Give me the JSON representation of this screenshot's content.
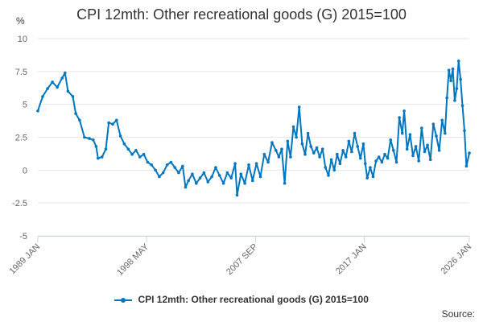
{
  "chart_data": {
    "type": "line",
    "title": "CPI 12mth: Other recreational goods (G) 2015=100",
    "ylabel": "%",
    "xlabel": "",
    "ylim": [
      -5,
      10
    ],
    "yticks": [
      "10",
      "7.5",
      "5",
      "2.5",
      "0",
      "-2.5",
      "-5"
    ],
    "xlim": [
      "1989-01",
      "2026-01"
    ],
    "xticks": [
      {
        "label": "1989 JAN",
        "date": "1989-01"
      },
      {
        "label": "1998 MAY",
        "date": "1998-05"
      },
      {
        "label": "2007 SEP",
        "date": "2007-09"
      },
      {
        "label": "2017 JAN",
        "date": "2017-01"
      },
      {
        "label": "2026 JAN",
        "date": "2026-01"
      }
    ],
    "grid": true,
    "legend_position": "bottom",
    "series": [
      {
        "name": "CPI 12mth: Other recreational goods (G) 2015=100",
        "color": "#0076bf",
        "points": [
          [
            "1989-01",
            4.5
          ],
          [
            "1989-06",
            5.6
          ],
          [
            "1989-11",
            6.2
          ],
          [
            "1990-04",
            6.7
          ],
          [
            "1990-09",
            6.3
          ],
          [
            "1991-02",
            7.0
          ],
          [
            "1991-05",
            7.4
          ],
          [
            "1991-08",
            6.0
          ],
          [
            "1992-01",
            5.6
          ],
          [
            "1992-04",
            4.3
          ],
          [
            "1992-08",
            3.8
          ],
          [
            "1993-01",
            2.5
          ],
          [
            "1993-06",
            2.4
          ],
          [
            "1993-10",
            2.3
          ],
          [
            "1994-01",
            1.8
          ],
          [
            "1994-03",
            0.9
          ],
          [
            "1994-07",
            1.0
          ],
          [
            "1994-11",
            1.6
          ],
          [
            "1995-02",
            3.6
          ],
          [
            "1995-06",
            3.5
          ],
          [
            "1995-10",
            3.8
          ],
          [
            "1996-02",
            2.6
          ],
          [
            "1996-06",
            2.0
          ],
          [
            "1996-10",
            1.6
          ],
          [
            "1997-02",
            1.2
          ],
          [
            "1997-06",
            1.5
          ],
          [
            "1997-10",
            1.0
          ],
          [
            "1998-02",
            1.2
          ],
          [
            "1998-06",
            0.6
          ],
          [
            "1998-10",
            0.4
          ],
          [
            "1999-02",
            0.0
          ],
          [
            "1999-06",
            -0.5
          ],
          [
            "1999-10",
            -0.2
          ],
          [
            "2000-02",
            0.4
          ],
          [
            "2000-06",
            0.6
          ],
          [
            "2000-10",
            0.2
          ],
          [
            "2001-02",
            -0.2
          ],
          [
            "2001-06",
            0.3
          ],
          [
            "2001-09",
            -1.3
          ],
          [
            "2001-12",
            -0.8
          ],
          [
            "2002-04",
            -0.3
          ],
          [
            "2002-08",
            -1.0
          ],
          [
            "2002-12",
            -0.6
          ],
          [
            "2003-04",
            -0.2
          ],
          [
            "2003-08",
            -0.9
          ],
          [
            "2003-12",
            -0.5
          ],
          [
            "2004-04",
            0.2
          ],
          [
            "2004-08",
            -0.4
          ],
          [
            "2004-12",
            -1.0
          ],
          [
            "2005-04",
            -0.2
          ],
          [
            "2005-08",
            -0.6
          ],
          [
            "2005-12",
            0.5
          ],
          [
            "2006-02",
            -1.9
          ],
          [
            "2006-06",
            -0.3
          ],
          [
            "2006-10",
            -1.0
          ],
          [
            "2007-02",
            0.4
          ],
          [
            "2007-06",
            -0.8
          ],
          [
            "2007-10",
            0.5
          ],
          [
            "2008-02",
            -0.5
          ],
          [
            "2008-06",
            1.2
          ],
          [
            "2008-10",
            0.6
          ],
          [
            "2009-02",
            2.1
          ],
          [
            "2009-06",
            1.5
          ],
          [
            "2009-09",
            1.0
          ],
          [
            "2009-12",
            1.6
          ],
          [
            "2010-03",
            -1.0
          ],
          [
            "2010-06",
            2.2
          ],
          [
            "2010-09",
            1.0
          ],
          [
            "2010-12",
            3.3
          ],
          [
            "2011-03",
            2.5
          ],
          [
            "2011-06",
            4.8
          ],
          [
            "2011-09",
            2.0
          ],
          [
            "2011-12",
            1.2
          ],
          [
            "2012-03",
            2.8
          ],
          [
            "2012-06",
            1.8
          ],
          [
            "2012-09",
            1.3
          ],
          [
            "2012-12",
            1.7
          ],
          [
            "2013-03",
            1.0
          ],
          [
            "2013-06",
            1.6
          ],
          [
            "2013-09",
            0.2
          ],
          [
            "2013-12",
            -0.4
          ],
          [
            "2014-03",
            0.8
          ],
          [
            "2014-06",
            0.0
          ],
          [
            "2014-09",
            1.2
          ],
          [
            "2014-12",
            0.5
          ],
          [
            "2015-03",
            1.5
          ],
          [
            "2015-06",
            1.0
          ],
          [
            "2015-09",
            2.2
          ],
          [
            "2015-12",
            1.4
          ],
          [
            "2016-03",
            2.8
          ],
          [
            "2016-06",
            1.8
          ],
          [
            "2016-09",
            0.9
          ],
          [
            "2016-12",
            2.0
          ],
          [
            "2017-02",
            0.5
          ],
          [
            "2017-04",
            -0.6
          ],
          [
            "2017-07",
            0.2
          ],
          [
            "2017-10",
            -0.5
          ],
          [
            "2018-01",
            0.7
          ],
          [
            "2018-04",
            1.0
          ],
          [
            "2018-07",
            0.6
          ],
          [
            "2018-10",
            1.2
          ],
          [
            "2019-01",
            0.9
          ],
          [
            "2019-04",
            2.3
          ],
          [
            "2019-07",
            1.5
          ],
          [
            "2019-10",
            0.6
          ],
          [
            "2020-01",
            4.0
          ],
          [
            "2020-04",
            2.8
          ],
          [
            "2020-06",
            4.5
          ],
          [
            "2020-09",
            1.6
          ],
          [
            "2020-12",
            2.7
          ],
          [
            "2021-03",
            1.1
          ],
          [
            "2021-06",
            1.8
          ],
          [
            "2021-09",
            0.7
          ],
          [
            "2021-12",
            3.2
          ],
          [
            "2022-03",
            1.4
          ],
          [
            "2022-06",
            1.9
          ],
          [
            "2022-09",
            0.8
          ],
          [
            "2022-12",
            3.5
          ],
          [
            "2023-03",
            2.6
          ],
          [
            "2023-06",
            1.5
          ],
          [
            "2023-09",
            3.8
          ],
          [
            "2023-12",
            2.8
          ],
          [
            "2024-02",
            5.5
          ],
          [
            "2024-04",
            7.6
          ],
          [
            "2024-06",
            6.8
          ],
          [
            "2024-08",
            7.7
          ],
          [
            "2024-10",
            5.3
          ],
          [
            "2024-12",
            6.2
          ],
          [
            "2025-02",
            8.3
          ],
          [
            "2025-04",
            6.9
          ],
          [
            "2025-06",
            4.9
          ],
          [
            "2025-08",
            3.0
          ],
          [
            "2025-10",
            0.3
          ],
          [
            "2026-01",
            1.3
          ]
        ]
      }
    ]
  },
  "legend": {
    "label": "CPI 12mth: Other recreational goods (G) 2015=100"
  },
  "source": {
    "label": "Source:"
  }
}
